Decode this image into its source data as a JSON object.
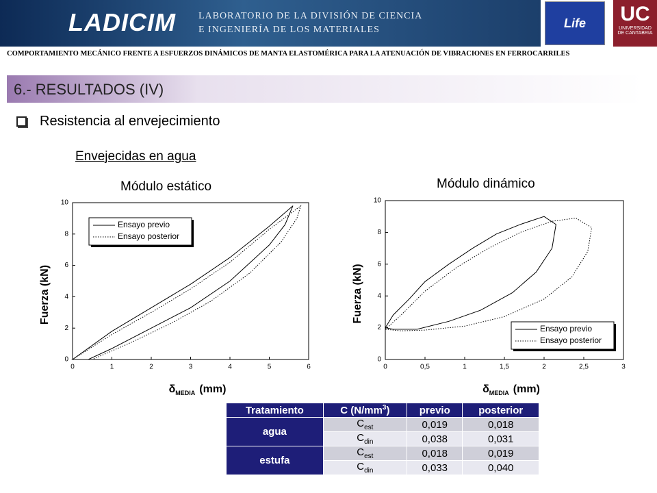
{
  "header": {
    "logo": "LADICIM",
    "lab_line1": "LABORATORIO DE LA DIVISIÓN DE CIENCIA",
    "lab_line2": "E INGENIERÍA DE LOS MATERIALES",
    "life": "Life",
    "uc": "UC",
    "uc_line1": "UNIVERSIDAD",
    "uc_line2": "DE CANTABRIA"
  },
  "subtitle": "COMPORTAMIENTO MECÁNICO FRENTE A ESFUERZOS DINÁMICOS DE MANTA ELASTOMÉRICA PARA LA ATENUACIÓN DE VIBRACIONES EN FERROCARRILES",
  "section": "6.- RESULTADOS (IV)",
  "bullet": "Resistencia al envejecimiento",
  "group_title": "Envejecidas en agua",
  "charts": [
    {
      "type": "line",
      "title": "Módulo estático",
      "y_label": "Fuerza (kN)",
      "x_label": {
        "symbol": "δ",
        "subscript": "MEDIA",
        "unit": "(mm)"
      },
      "xlim": [
        0,
        6
      ],
      "xticks": [
        0,
        1,
        2,
        3,
        4,
        5,
        6
      ],
      "ylim": [
        0,
        10
      ],
      "yticks": [
        0,
        2,
        4,
        6,
        8,
        10
      ],
      "legend": "upper left",
      "series": [
        {
          "name": "Ensayo previo",
          "color": "#000000",
          "dash": "solid",
          "x": [
            0,
            1,
            2,
            3,
            4,
            5,
            5.6,
            5.4,
            5,
            4,
            3,
            2,
            1,
            0.4
          ],
          "y": [
            0,
            1.8,
            3.3,
            4.8,
            6.5,
            8.5,
            9.8,
            8.6,
            7.3,
            5,
            3.3,
            2,
            0.7,
            0
          ]
        },
        {
          "name": "Ensayo posterior",
          "color": "#000000",
          "dash": "dotted",
          "x": [
            0,
            1,
            2,
            3,
            4,
            5,
            5.8,
            5.7,
            5.3,
            4.5,
            3.5,
            2.5,
            1.5,
            0.5
          ],
          "y": [
            0,
            1.6,
            3,
            4.5,
            6.2,
            8.3,
            9.8,
            9,
            7.5,
            5.5,
            3.7,
            2.3,
            1.1,
            0
          ]
        }
      ]
    },
    {
      "type": "line",
      "title": "Módulo dinámico",
      "y_label": "Fuerza (kN)",
      "x_label": {
        "symbol": "δ",
        "subscript": "MEDIA",
        "unit": "(mm)"
      },
      "xlim": [
        0,
        3
      ],
      "xticks": [
        0,
        {
          "value": 0.5,
          "label": "0,5"
        },
        1,
        {
          "value": 1.5,
          "label": "1,5"
        },
        2,
        {
          "value": 2.5,
          "label": "2,5"
        },
        3
      ],
      "ylim": [
        0,
        10
      ],
      "yticks": [
        0,
        2,
        4,
        6,
        8,
        10
      ],
      "legend": "lower right",
      "series": [
        {
          "name": "Ensayo previo",
          "color": "#000000",
          "dash": "solid",
          "x": [
            0,
            0.1,
            0.3,
            0.5,
            0.8,
            1.1,
            1.4,
            1.7,
            2,
            2.15,
            2.1,
            1.9,
            1.6,
            1.2,
            0.8,
            0.4,
            0.1,
            0
          ],
          "y": [
            2,
            2.8,
            3.8,
            4.9,
            6,
            7,
            7.9,
            8.5,
            9,
            8.5,
            7,
            5.5,
            4.2,
            3.1,
            2.4,
            1.9,
            1.9,
            2
          ]
        },
        {
          "name": "Ensayo posterior",
          "color": "#000000",
          "dash": "dotted",
          "x": [
            0,
            0.2,
            0.5,
            0.9,
            1.3,
            1.7,
            2.1,
            2.4,
            2.6,
            2.55,
            2.35,
            2,
            1.5,
            1,
            0.5,
            0.2,
            0
          ],
          "y": [
            1.9,
            2.8,
            4.3,
            5.8,
            7,
            8,
            8.7,
            8.9,
            8.3,
            6.8,
            5.2,
            3.8,
            2.7,
            2.1,
            1.85,
            1.8,
            1.9
          ]
        }
      ]
    }
  ],
  "table": {
    "header": [
      "Tratamiento",
      {
        "base": "C (N/mm",
        "sup": "3",
        "end": ")"
      },
      "previo",
      "posterior"
    ],
    "groups": [
      {
        "label": "agua",
        "rows": [
          {
            "symbol": "C",
            "sub": "est",
            "previo": "0,019",
            "posterior": "0,018"
          },
          {
            "symbol": "C",
            "sub": "din",
            "previo": "0,038",
            "posterior": "0,031"
          }
        ]
      },
      {
        "label": "estufa",
        "rows": [
          {
            "symbol": "C",
            "sub": "est",
            "previo": "0,018",
            "posterior": "0,019"
          },
          {
            "symbol": "C",
            "sub": "din",
            "previo": "0,033",
            "posterior": "0,040"
          }
        ]
      }
    ]
  }
}
